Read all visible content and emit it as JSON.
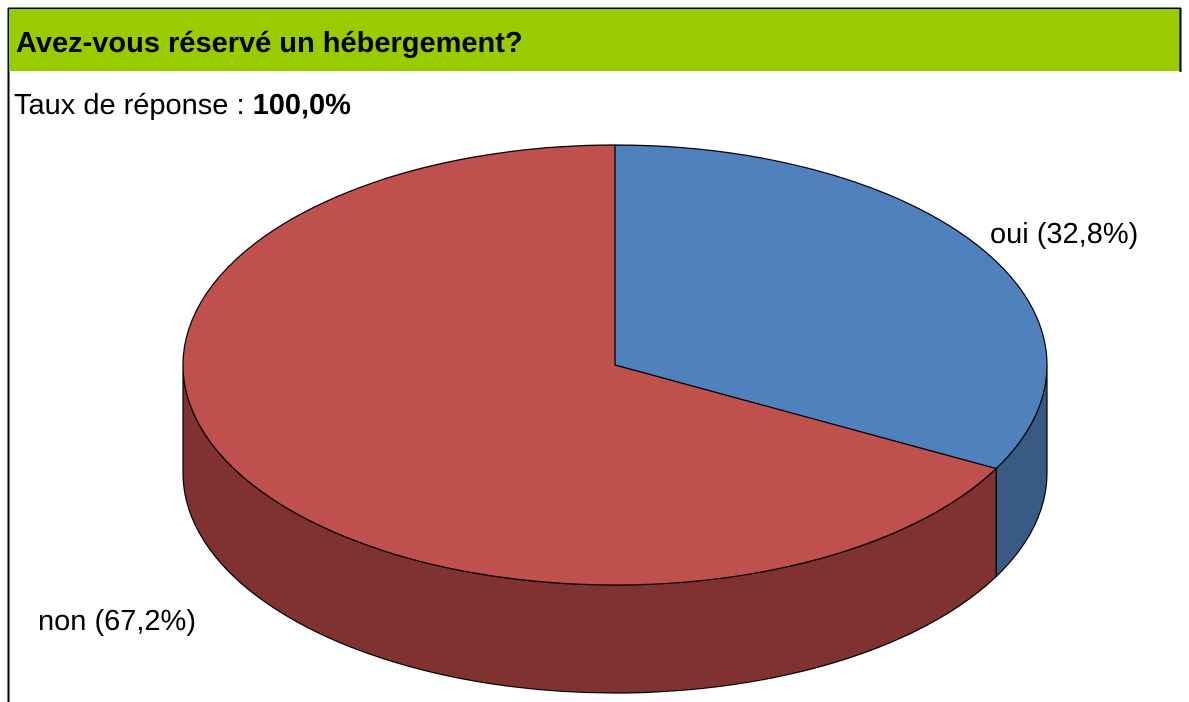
{
  "chart_data": {
    "type": "pie",
    "title": "Avez-vous réservé un hébergement?",
    "subtitle_label": "Taux de réponse :",
    "subtitle_value": "100,0%",
    "categories": [
      "oui",
      "non"
    ],
    "values": [
      32.8,
      67.2
    ],
    "value_labels": [
      "oui (32,8%)",
      "non (67,2%)"
    ],
    "colors": [
      "#4f81bd",
      "#c0504d"
    ],
    "side_colors": [
      "#385a84",
      "#7f322f"
    ],
    "three_d": true
  }
}
